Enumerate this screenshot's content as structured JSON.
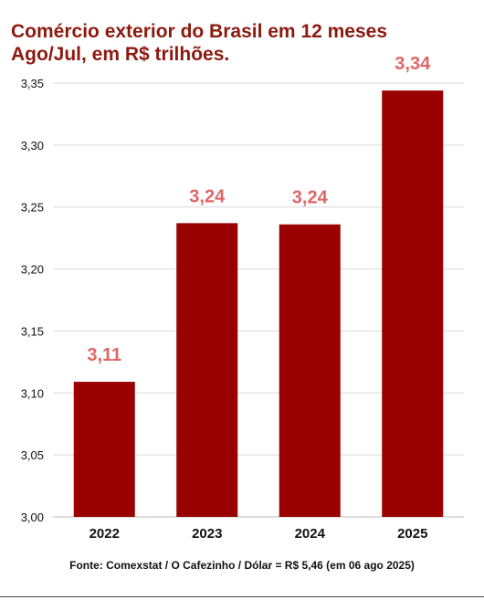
{
  "colors": {
    "bar": "#990000",
    "label": "#e06666",
    "title": "#8c1a10",
    "grid": "#d9d9d9"
  },
  "chart_data": {
    "type": "bar",
    "title": [
      "Comércio exterior do Brasil em 12 meses",
      "Ago/Jul, em R$ trilhões."
    ],
    "categories": [
      "2022",
      "2023",
      "2024",
      "2025"
    ],
    "values": [
      3.11,
      3.24,
      3.24,
      3.34
    ],
    "value_labels": [
      "3,11",
      "3,24",
      "3,24",
      "3,34"
    ],
    "plotted_values": [
      3.109,
      3.237,
      3.236,
      3.344
    ],
    "ylim": [
      3.0,
      3.35
    ],
    "yticks": [
      3.0,
      3.05,
      3.1,
      3.15,
      3.2,
      3.25,
      3.3,
      3.35
    ],
    "ytick_labels": [
      "3,00",
      "3,05",
      "3,10",
      "3,15",
      "3,20",
      "3,25",
      "3,30",
      "3,35"
    ],
    "grid": true,
    "legend": "none",
    "xlabel": "",
    "ylabel": ""
  },
  "source": "Fonte: Comexstat / O Cafezinho / Dólar = R$ 5,46 (em 06 ago 2025)"
}
